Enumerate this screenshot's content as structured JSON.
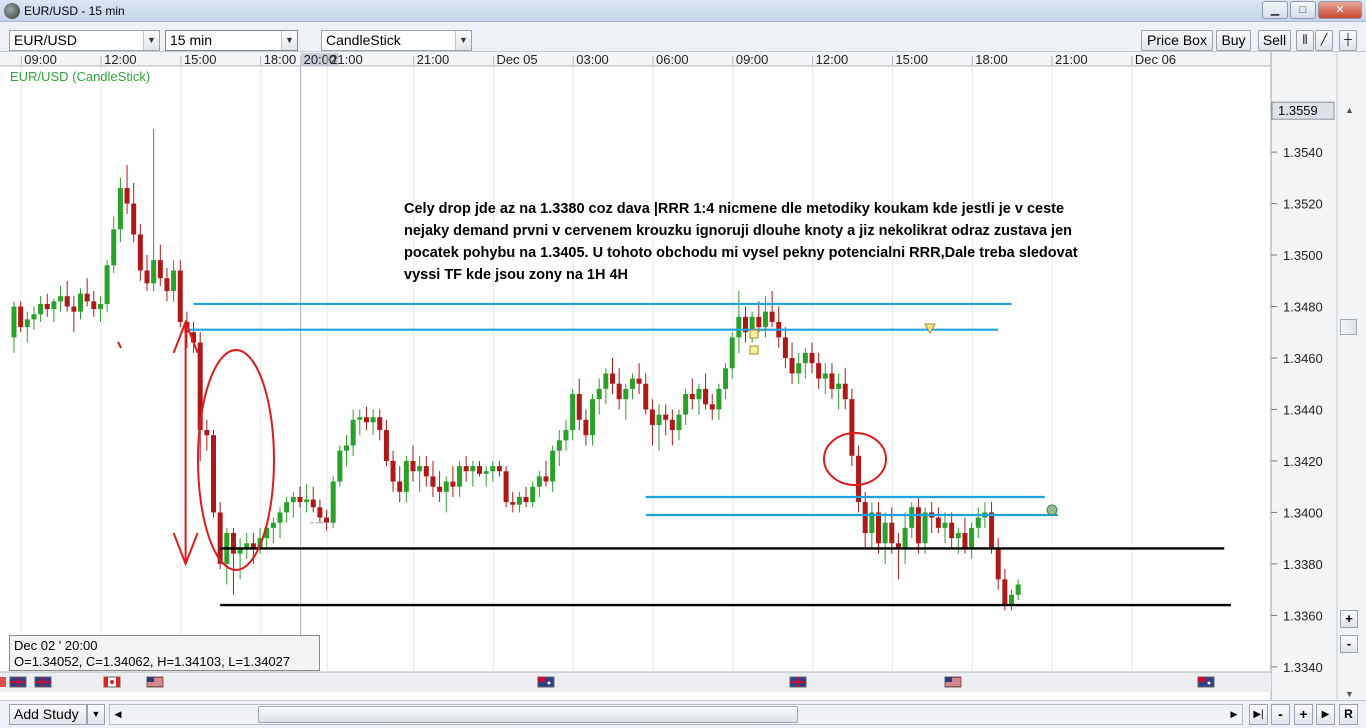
{
  "window": {
    "title": "EUR/USD - 15 min",
    "minimize": "▁",
    "maximize": "□",
    "close": "✕"
  },
  "toolbar": {
    "symbol": "EUR/USD",
    "period": "15 min",
    "chart_type": "CandleStick",
    "price_box": "Price Box",
    "buy": "Buy",
    "sell": "Sell"
  },
  "chart": {
    "label": "EUR/USD (CandleStick)",
    "annotation_lines": [
      "Cely drop jde az na 1.3380  coz dava |RRR 1:4 nicmene dle metodiky koukam kde jestli je v ceste",
      "nejaky demand prvni v cervenem krouzku ignoruji dlouhe knoty a jiz nekolikrat odraz zustava jen",
      "pocatek pohybu na 1.3405. U tohoto obchodu mi vysel pekny potencialni RRR,Dale treba sledovat",
      "vyssi TF kde jsou zony na 1H 4H"
    ],
    "current_price": "1.3559",
    "info_date": "Dec 02 ' 20:00",
    "info_ohlc": "O=1.34052, C=1.34062, H=1.34103, L=1.34027",
    "colors": {
      "up": "#2aa12a",
      "down": "#b01818",
      "blue_line": "#1fa3e0",
      "black_line": "#000000",
      "red_mark": "#e01a1a"
    }
  },
  "chart_data": {
    "type": "candlestick",
    "symbol": "EUR/USD",
    "timeframe": "15 min",
    "y_ticks": [
      "1.3540",
      "1.3520",
      "1.3500",
      "1.3480",
      "1.3460",
      "1.3440",
      "1.3420",
      "1.3400",
      "1.3380",
      "1.3360",
      "1.3340"
    ],
    "y_tick_values": [
      1.354,
      1.352,
      1.35,
      1.348,
      1.346,
      1.344,
      1.342,
      1.34,
      1.338,
      1.336,
      1.334
    ],
    "ylim": [
      1.3338,
      1.3575
    ],
    "x_labels": [
      "09:00",
      "12:00",
      "15:00",
      "18:00",
      "20:00",
      "21:00",
      "21:00",
      "Dec 05",
      "03:00",
      "06:00",
      "09:00",
      "12:00",
      "15:00",
      "18:00",
      "21:00",
      "Dec 06"
    ],
    "x_label_index": [
      2,
      14,
      26,
      38,
      44,
      48,
      61,
      73,
      85,
      97,
      109,
      121,
      133,
      145,
      157,
      169
    ],
    "highlighted_x_label": "20:00",
    "candles": [
      [
        1.3468,
        1.3482,
        1.3462,
        1.348
      ],
      [
        1.348,
        1.3482,
        1.347,
        1.3472
      ],
      [
        1.3472,
        1.3478,
        1.3466,
        1.3475
      ],
      [
        1.3475,
        1.348,
        1.3471,
        1.3477
      ],
      [
        1.3477,
        1.3484,
        1.3474,
        1.3481
      ],
      [
        1.3481,
        1.3485,
        1.3476,
        1.3479
      ],
      [
        1.3479,
        1.3483,
        1.3474,
        1.3482
      ],
      [
        1.3482,
        1.3488,
        1.3478,
        1.3484
      ],
      [
        1.3484,
        1.349,
        1.3478,
        1.348
      ],
      [
        1.348,
        1.3484,
        1.347,
        1.3478
      ],
      [
        1.3478,
        1.3487,
        1.3475,
        1.3485
      ],
      [
        1.3485,
        1.3491,
        1.348,
        1.3482
      ],
      [
        1.3482,
        1.3486,
        1.3476,
        1.3479
      ],
      [
        1.3479,
        1.3484,
        1.3474,
        1.3481
      ],
      [
        1.3481,
        1.3498,
        1.3478,
        1.3496
      ],
      [
        1.3496,
        1.3515,
        1.3493,
        1.351
      ],
      [
        1.351,
        1.353,
        1.3505,
        1.3526
      ],
      [
        1.3526,
        1.3535,
        1.3516,
        1.352
      ],
      [
        1.352,
        1.3528,
        1.3505,
        1.3508
      ],
      [
        1.3508,
        1.3512,
        1.349,
        1.3494
      ],
      [
        1.3494,
        1.35,
        1.3486,
        1.3489
      ],
      [
        1.3489,
        1.3549,
        1.3486,
        1.3498
      ],
      [
        1.3498,
        1.3504,
        1.3488,
        1.3491
      ],
      [
        1.3491,
        1.3495,
        1.3482,
        1.3486
      ],
      [
        1.3486,
        1.3498,
        1.3482,
        1.3494
      ],
      [
        1.3494,
        1.3498,
        1.3472,
        1.3474
      ],
      [
        1.3474,
        1.3478,
        1.3464,
        1.347
      ],
      [
        1.347,
        1.3474,
        1.3462,
        1.3466
      ],
      [
        1.3466,
        1.347,
        1.342,
        1.3432
      ],
      [
        1.3432,
        1.3436,
        1.3424,
        1.343
      ],
      [
        1.343,
        1.3432,
        1.3398,
        1.34
      ],
      [
        1.34,
        1.3404,
        1.3378,
        1.338
      ],
      [
        1.338,
        1.3394,
        1.3372,
        1.3392
      ],
      [
        1.3392,
        1.3394,
        1.3368,
        1.3384
      ],
      [
        1.3384,
        1.339,
        1.3374,
        1.3386
      ],
      [
        1.3386,
        1.3392,
        1.3382,
        1.3388
      ],
      [
        1.3388,
        1.3392,
        1.338,
        1.3386
      ],
      [
        1.3386,
        1.3394,
        1.3384,
        1.339
      ],
      [
        1.339,
        1.3396,
        1.3386,
        1.3394
      ],
      [
        1.3394,
        1.3398,
        1.3388,
        1.3396
      ],
      [
        1.3396,
        1.3402,
        1.339,
        1.34
      ],
      [
        1.34,
        1.3406,
        1.3396,
        1.3404
      ],
      [
        1.3404,
        1.3408,
        1.3398,
        1.3406
      ],
      [
        1.3406,
        1.341,
        1.3402,
        1.3404
      ],
      [
        1.3404,
        1.3411,
        1.34,
        1.3405
      ],
      [
        1.3405,
        1.341,
        1.34,
        1.3402
      ],
      [
        1.3402,
        1.3405,
        1.3396,
        1.3398
      ],
      [
        1.3398,
        1.3401,
        1.3393,
        1.3396
      ],
      [
        1.3396,
        1.3414,
        1.3394,
        1.3412
      ],
      [
        1.3412,
        1.3426,
        1.341,
        1.3424
      ],
      [
        1.3424,
        1.343,
        1.3418,
        1.3426
      ],
      [
        1.3426,
        1.344,
        1.3422,
        1.3436
      ],
      [
        1.3436,
        1.344,
        1.343,
        1.3437
      ],
      [
        1.3437,
        1.3441,
        1.3432,
        1.3435
      ],
      [
        1.3435,
        1.344,
        1.343,
        1.3437
      ],
      [
        1.3437,
        1.344,
        1.3428,
        1.3432
      ],
      [
        1.3432,
        1.3436,
        1.3418,
        1.342
      ],
      [
        1.342,
        1.3424,
        1.3408,
        1.3412
      ],
      [
        1.3412,
        1.3418,
        1.3404,
        1.3408
      ],
      [
        1.3408,
        1.3422,
        1.3404,
        1.342
      ],
      [
        1.342,
        1.3426,
        1.3412,
        1.3416
      ],
      [
        1.3416,
        1.3422,
        1.3408,
        1.3418
      ],
      [
        1.3418,
        1.3422,
        1.341,
        1.3414
      ],
      [
        1.3414,
        1.342,
        1.3406,
        1.341
      ],
      [
        1.341,
        1.3416,
        1.3404,
        1.3408
      ],
      [
        1.3408,
        1.3414,
        1.34,
        1.3412
      ],
      [
        1.3412,
        1.3418,
        1.3406,
        1.341
      ],
      [
        1.341,
        1.342,
        1.3406,
        1.3418
      ],
      [
        1.3418,
        1.3422,
        1.3412,
        1.3416
      ],
      [
        1.3416,
        1.342,
        1.341,
        1.3418
      ],
      [
        1.3418,
        1.342,
        1.3414,
        1.3415
      ],
      [
        1.3415,
        1.3418,
        1.341,
        1.3416
      ],
      [
        1.3416,
        1.342,
        1.3412,
        1.3418
      ],
      [
        1.3418,
        1.342,
        1.3414,
        1.3416
      ],
      [
        1.3416,
        1.3418,
        1.3402,
        1.3404
      ],
      [
        1.3404,
        1.3408,
        1.34,
        1.3403
      ],
      [
        1.3403,
        1.3408,
        1.34,
        1.3406
      ],
      [
        1.3406,
        1.341,
        1.3402,
        1.3404
      ],
      [
        1.3404,
        1.3412,
        1.3402,
        1.341
      ],
      [
        1.341,
        1.3416,
        1.3406,
        1.3414
      ],
      [
        1.3414,
        1.342,
        1.341,
        1.3412
      ],
      [
        1.3412,
        1.3426,
        1.3408,
        1.3424
      ],
      [
        1.3424,
        1.3432,
        1.3418,
        1.3428
      ],
      [
        1.3428,
        1.3436,
        1.3424,
        1.3432
      ],
      [
        1.3432,
        1.3448,
        1.3428,
        1.3446
      ],
      [
        1.3446,
        1.3452,
        1.3432,
        1.3436
      ],
      [
        1.3436,
        1.344,
        1.3426,
        1.343
      ],
      [
        1.343,
        1.3446,
        1.3426,
        1.3444
      ],
      [
        1.3444,
        1.3452,
        1.3438,
        1.3448
      ],
      [
        1.3448,
        1.3456,
        1.3442,
        1.3454
      ],
      [
        1.3454,
        1.346,
        1.3446,
        1.345
      ],
      [
        1.345,
        1.3456,
        1.344,
        1.3444
      ],
      [
        1.3444,
        1.345,
        1.3436,
        1.3448
      ],
      [
        1.3448,
        1.3454,
        1.3444,
        1.3452
      ],
      [
        1.3452,
        1.3458,
        1.3446,
        1.345
      ],
      [
        1.345,
        1.3454,
        1.3438,
        1.344
      ],
      [
        1.344,
        1.3444,
        1.3426,
        1.3434
      ],
      [
        1.3434,
        1.3442,
        1.3424,
        1.3438
      ],
      [
        1.3438,
        1.3442,
        1.343,
        1.3436
      ],
      [
        1.3436,
        1.344,
        1.3426,
        1.3432
      ],
      [
        1.3432,
        1.344,
        1.3428,
        1.3438
      ],
      [
        1.3438,
        1.3448,
        1.3434,
        1.3446
      ],
      [
        1.3446,
        1.3452,
        1.344,
        1.3444
      ],
      [
        1.3444,
        1.345,
        1.3438,
        1.3448
      ],
      [
        1.3448,
        1.3454,
        1.344,
        1.3442
      ],
      [
        1.3442,
        1.3446,
        1.3436,
        1.344
      ],
      [
        1.344,
        1.345,
        1.3436,
        1.3448
      ],
      [
        1.3448,
        1.3458,
        1.3444,
        1.3456
      ],
      [
        1.3456,
        1.347,
        1.3452,
        1.3468
      ],
      [
        1.3468,
        1.3486,
        1.3462,
        1.3476
      ],
      [
        1.3476,
        1.348,
        1.3466,
        1.347
      ],
      [
        1.347,
        1.3478,
        1.3466,
        1.3476
      ],
      [
        1.3476,
        1.3482,
        1.347,
        1.3472
      ],
      [
        1.3472,
        1.3484,
        1.3468,
        1.3478
      ],
      [
        1.3478,
        1.3486,
        1.3472,
        1.3474
      ],
      [
        1.3474,
        1.348,
        1.3464,
        1.3468
      ],
      [
        1.3468,
        1.3472,
        1.3456,
        1.346
      ],
      [
        1.346,
        1.3466,
        1.345,
        1.3454
      ],
      [
        1.3454,
        1.3462,
        1.345,
        1.3458
      ],
      [
        1.3458,
        1.3464,
        1.3452,
        1.3462
      ],
      [
        1.3462,
        1.3466,
        1.3454,
        1.3458
      ],
      [
        1.3458,
        1.3462,
        1.3448,
        1.3452
      ],
      [
        1.3452,
        1.3458,
        1.3446,
        1.3454
      ],
      [
        1.3454,
        1.3458,
        1.3444,
        1.3448
      ],
      [
        1.3448,
        1.3454,
        1.344,
        1.345
      ],
      [
        1.345,
        1.3456,
        1.344,
        1.3444
      ],
      [
        1.3444,
        1.3448,
        1.3418,
        1.3422
      ],
      [
        1.3422,
        1.3426,
        1.34,
        1.3404
      ],
      [
        1.3404,
        1.3408,
        1.3386,
        1.3392
      ],
      [
        1.3392,
        1.3404,
        1.3386,
        1.34
      ],
      [
        1.34,
        1.3404,
        1.3384,
        1.3388
      ],
      [
        1.3388,
        1.34,
        1.338,
        1.3396
      ],
      [
        1.3396,
        1.3402,
        1.3384,
        1.3388
      ],
      [
        1.3388,
        1.3392,
        1.3374,
        1.3386
      ],
      [
        1.3386,
        1.34,
        1.338,
        1.3394
      ],
      [
        1.3394,
        1.3404,
        1.339,
        1.3402
      ],
      [
        1.3402,
        1.3406,
        1.3384,
        1.3388
      ],
      [
        1.3388,
        1.3402,
        1.3384,
        1.34
      ],
      [
        1.34,
        1.3404,
        1.3392,
        1.3398
      ],
      [
        1.3398,
        1.3402,
        1.3392,
        1.3394
      ],
      [
        1.3394,
        1.34,
        1.3388,
        1.3396
      ],
      [
        1.3396,
        1.34,
        1.3386,
        1.339
      ],
      [
        1.339,
        1.3394,
        1.3384,
        1.3392
      ],
      [
        1.3392,
        1.3398,
        1.3384,
        1.3386
      ],
      [
        1.3386,
        1.3396,
        1.3382,
        1.3394
      ],
      [
        1.3394,
        1.3402,
        1.339,
        1.3398
      ],
      [
        1.3398,
        1.3404,
        1.3394,
        1.34
      ],
      [
        1.34,
        1.3404,
        1.3384,
        1.3386
      ],
      [
        1.3386,
        1.339,
        1.337,
        1.3374
      ],
      [
        1.3374,
        1.3378,
        1.3362,
        1.3364
      ],
      [
        1.3364,
        1.337,
        1.3362,
        1.3368
      ],
      [
        1.3368,
        1.3374,
        1.3366,
        1.3372
      ]
    ],
    "markers": {
      "blue_lines": [
        {
          "price": 1.3481,
          "from": 27,
          "to": 150
        },
        {
          "price": 1.3471,
          "from": 26,
          "to": 148
        },
        {
          "price": 1.3406,
          "from": 95,
          "to": 155
        },
        {
          "price": 1.3399,
          "from": 95,
          "to": 157
        }
      ],
      "black_lines": [
        {
          "price": 1.3386,
          "from": 31,
          "to": 182
        },
        {
          "price": 1.3364,
          "from": 31,
          "to": 183
        }
      ]
    }
  },
  "flags": [
    "gb",
    "ca",
    "us",
    "au",
    "gb",
    "us",
    "eu-au"
  ],
  "bottom": {
    "add_study": "Add Study",
    "reset": "R"
  }
}
